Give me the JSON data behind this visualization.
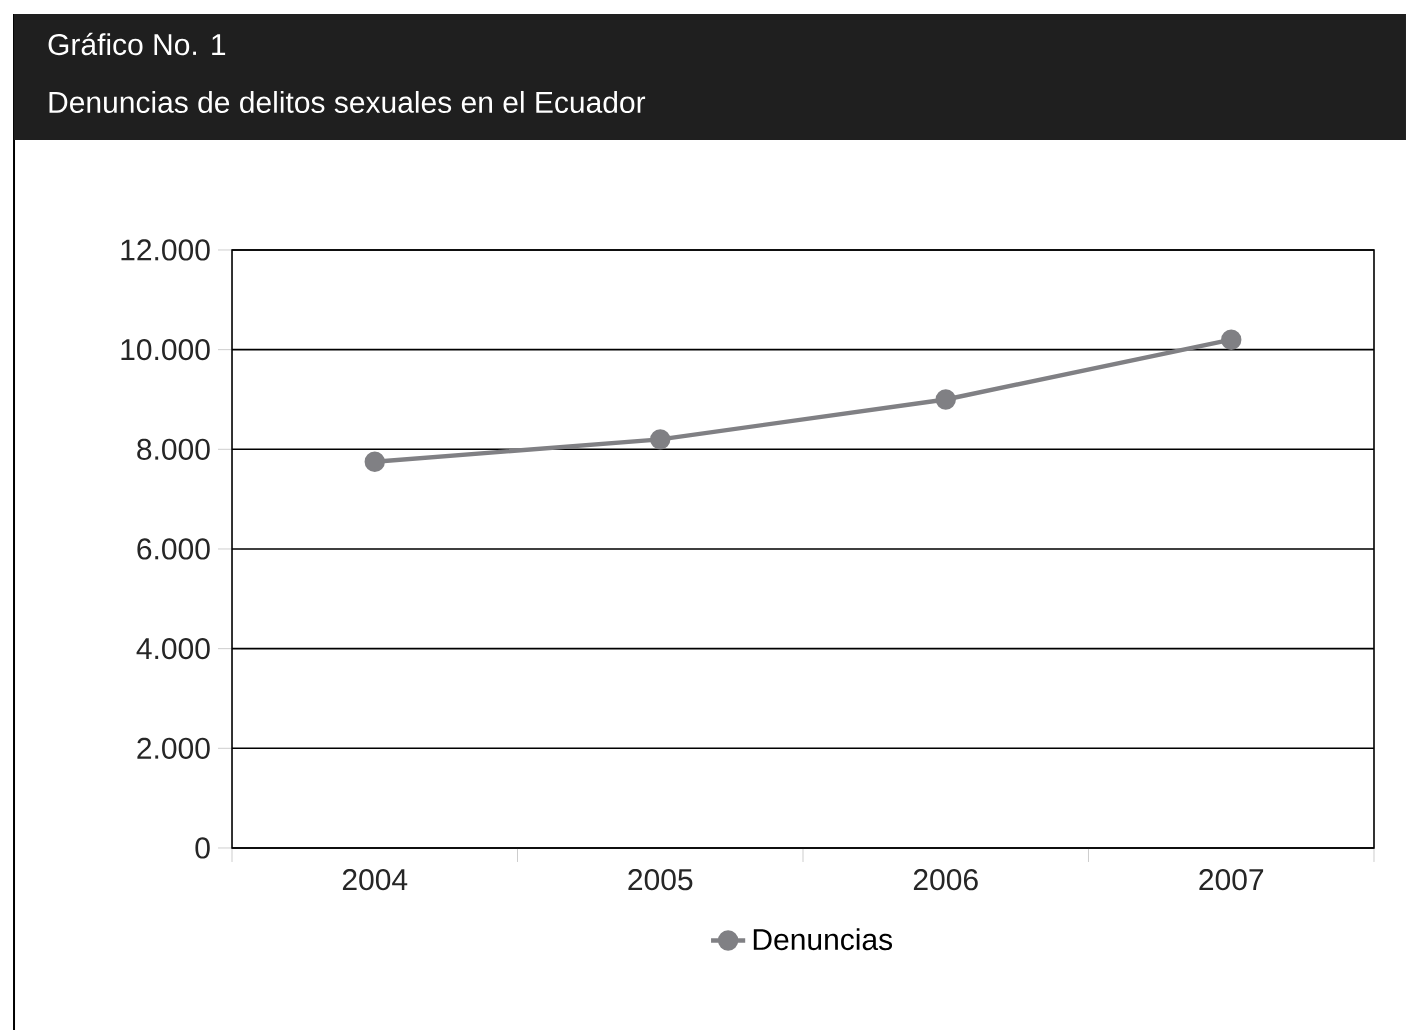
{
  "chart_data": {
    "type": "line",
    "title": "Gráfico No. 1",
    "subtitle": "Denuncias de delitos sexuales en el Ecuador",
    "categories": [
      "2004",
      "2005",
      "2006",
      "2007"
    ],
    "series": [
      {
        "name": "Denuncias",
        "color": "#808084",
        "values": [
          7750,
          8200,
          9000,
          10200
        ]
      }
    ],
    "ylim": [
      0,
      12000
    ],
    "yticks": [
      {
        "value": 0,
        "label": "0"
      },
      {
        "value": 2000,
        "label": "2.000"
      },
      {
        "value": 4000,
        "label": "4.000"
      },
      {
        "value": 6000,
        "label": "6.000"
      },
      {
        "value": 8000,
        "label": "8.000"
      },
      {
        "value": 10000,
        "label": "10.000"
      },
      {
        "value": 12000,
        "label": "12.000"
      }
    ],
    "grid": "y",
    "legend": "bottom",
    "marker": "circle",
    "line_style": "solid"
  }
}
